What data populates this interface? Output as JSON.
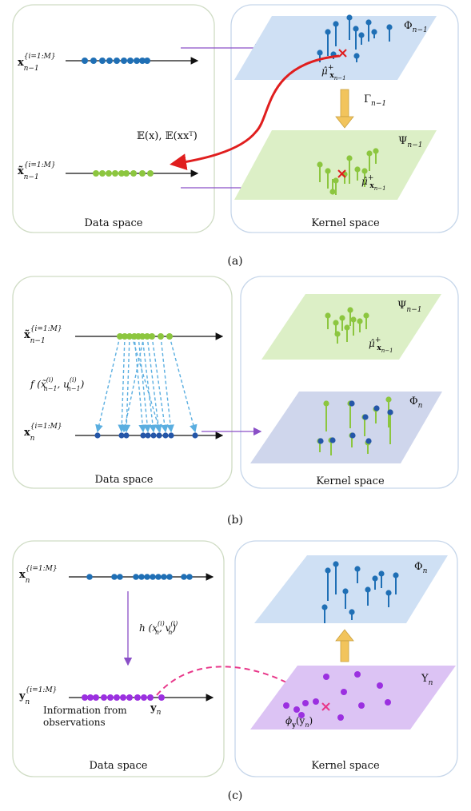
{
  "panel_a": {
    "caption": "(a)",
    "data_space_label": "Data space",
    "kernel_space_label": "Kernel space",
    "x_prev_label": "x",
    "x_prev_sup": "{i=1:M}",
    "x_prev_sub": "n−1",
    "xt_prev_label": "x̃",
    "xt_prev_sup": "{i=1:M}",
    "xt_prev_sub": "n−1",
    "moment_label": "𝔼(x), 𝔼(xxᵀ)",
    "phi_label": "Φ",
    "phi_sub": "n−1",
    "psi_label": "Ψ",
    "psi_sub": "n−1",
    "gamma_label": "Γ",
    "gamma_sub": "n−1",
    "mu_top_label": "μ̂",
    "mu_top_sup": "+",
    "mu_top_sub": "x",
    "mu_top_subsub": "n−1",
    "mu_bot_label": "μ̂",
    "mu_bot_sup": "+",
    "mu_bot_sub": "x",
    "mu_bot_subsub": "n−1"
  },
  "panel_b": {
    "caption": "(b)",
    "data_space_label": "Data space",
    "kernel_space_label": "Kernel space",
    "xt_label": "x̃",
    "xt_sup": "{i=1:M}",
    "xt_sub": "n−1",
    "x_label": "x",
    "x_sup": "{i=1:M}",
    "x_sub": "n",
    "f_label": "f (x̃",
    "f_sup1": "(i)",
    "f_sub1": "n−1",
    "f_mid": ", u",
    "f_sup2": "(i)",
    "f_sub2": "n−1",
    "f_end": ")",
    "psi_label": "Ψ",
    "psi_sub": "n−1",
    "phi_label": "Φ",
    "phi_sub": "n",
    "mu_label": "μ̂",
    "mu_sup": "+",
    "mu_sub": "x",
    "mu_subsub": "n−1"
  },
  "panel_c": {
    "caption": "(c)",
    "data_space_label": "Data space",
    "kernel_space_label": "Kernel space",
    "x_label": "x",
    "x_sup": "{i=1:M}",
    "x_sub": "n",
    "y_label": "y",
    "y_sup": "{i=1:M}",
    "y_sub": "n",
    "h_label": "h (x",
    "h_sup1": "(i)",
    "h_sub1": "n",
    "h_mid": ", v",
    "h_sup2": "(i)",
    "h_sub2": "n",
    "h_end": ")",
    "yn_label": "y",
    "yn_sub": "n",
    "info_line1": "Information from",
    "info_line2": "observations",
    "phi_label": "Φ",
    "phi_sub": "n",
    "upsilon_label": "Υ",
    "upsilon_sub": "n",
    "phi_y_label": "ϕ",
    "phi_y_sub": "y",
    "phi_y_arg": "(y",
    "phi_y_arg_sub": "n",
    "phi_y_end": ")"
  },
  "colors": {
    "blue": "#1f6fb5",
    "dark_blue": "#2456a8",
    "green": "#8cc63f",
    "purple": "#9b30e0",
    "red": "#e01e1e",
    "pink": "#e8388a",
    "dashed_blue": "#5aaee0",
    "arrow_purple": "#8a4fc7",
    "plane_blue": "#cfe0f4",
    "plane_green": "#dcefc6",
    "plane_purple": "#dcc3f4",
    "plane_slate": "#cfd6ec",
    "gold": "#f2c45c"
  }
}
